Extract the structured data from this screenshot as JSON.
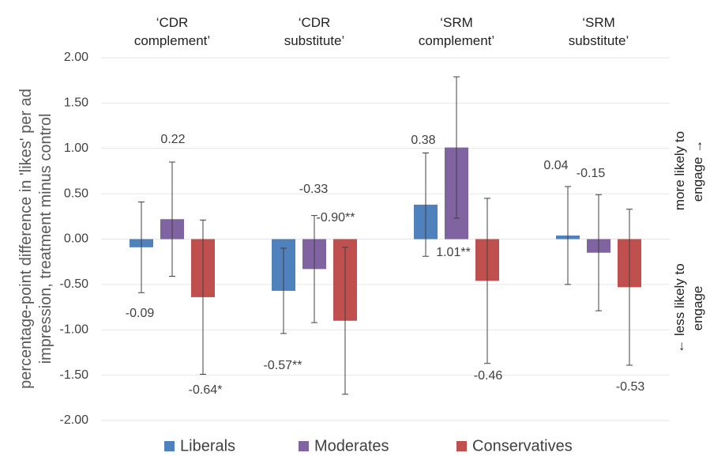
{
  "chart_data": {
    "type": "bar",
    "y_label": [
      "percentage-point difference in 'likes' per ad",
      "impression, treatment minus control"
    ],
    "categories": [
      "‘CDR complement’",
      "‘CDR substitute’",
      "‘SRM complement’",
      "‘SRM substitute’"
    ],
    "series": [
      {
        "name": "Liberals",
        "color": "#4f81bd",
        "values": [
          -0.09,
          -0.57,
          0.38,
          0.04
        ],
        "errors": [
          0.5,
          0.47,
          0.57,
          0.54
        ],
        "value_labels": [
          "-0.09",
          "-0.57**",
          "0.38",
          "0.04"
        ]
      },
      {
        "name": "Moderates",
        "color": "#8064a2",
        "values": [
          0.22,
          -0.33,
          1.01,
          -0.15
        ],
        "errors": [
          0.63,
          0.59,
          0.78,
          0.64
        ],
        "value_labels": [
          "0.22",
          "-0.33",
          "1.01**",
          "-0.15"
        ]
      },
      {
        "name": "Conservatives",
        "color": "#c0504d",
        "values": [
          -0.64,
          -0.9,
          -0.46,
          -0.53
        ],
        "errors": [
          0.85,
          0.81,
          0.91,
          0.86
        ],
        "value_labels": [
          "-0.64*",
          "-0.90**",
          "-0.46",
          "-0.53"
        ]
      }
    ],
    "ylim": [
      -2,
      2
    ],
    "yticks": [
      {
        "value": 2,
        "label": "2.00"
      },
      {
        "value": 1.5,
        "label": "1.50"
      },
      {
        "value": 1,
        "label": "1.00"
      },
      {
        "value": 0.5,
        "label": "0.50"
      },
      {
        "value": 0,
        "label": "0.00"
      },
      {
        "value": -0.5,
        "label": "-0.50"
      },
      {
        "value": -1,
        "label": "-1.00"
      },
      {
        "value": -1.5,
        "label": "-1.50"
      },
      {
        "value": -2,
        "label": "-2.00"
      }
    ],
    "grid": true,
    "annotations": [
      [
        "more likely to",
        "engage →"
      ],
      [
        "← less likely to",
        "engage"
      ]
    ]
  }
}
